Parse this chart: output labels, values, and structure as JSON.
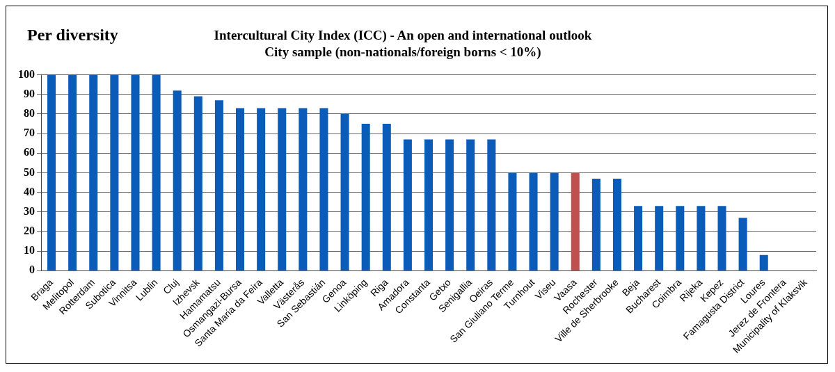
{
  "chart_data": {
    "type": "bar",
    "title": "Per diversity",
    "subtitle": "Intercultural City Index (ICC) - An open and international outlook\nCity sample (non-nationals/foreign borns < 10%)",
    "categories": [
      "Braga",
      "Melitopol",
      "Rotterdam",
      "Subotica",
      "Vinnitsa",
      "Lublin",
      "Cluj",
      "Izhevsk",
      "Hamamatsu",
      "Osmangazi-Bursa",
      "Santa Maria da Feira",
      "Valletta",
      "Västerås",
      "San Sebastián",
      "Genoa",
      "Linköping",
      "Riga",
      "Amadora",
      "Constanta",
      "Getxo",
      "Senigallia",
      "Oeiras",
      "San Giuliano Terme",
      "Turnhout",
      "Viseu",
      "Vaasa",
      "Rochester",
      "Ville de Sherbrooke",
      "Beja",
      "Bucharest",
      "Coimbra",
      "Rijeka",
      "Kepez",
      "Famagusta District",
      "Loures",
      "Jerez de Frontera",
      "Municipality of Klaksvik"
    ],
    "values": [
      100,
      100,
      100,
      100,
      100,
      100,
      92,
      89,
      87,
      83,
      83,
      83,
      83,
      83,
      80,
      75,
      75,
      67,
      67,
      67,
      67,
      67,
      50,
      50,
      50,
      50,
      47,
      47,
      33,
      33,
      33,
      33,
      33,
      27,
      8,
      0,
      0
    ],
    "colors": [
      "#0a5cb8",
      "#0a5cb8",
      "#0a5cb8",
      "#0a5cb8",
      "#0a5cb8",
      "#0a5cb8",
      "#0a5cb8",
      "#0a5cb8",
      "#0a5cb8",
      "#0a5cb8",
      "#0a5cb8",
      "#0a5cb8",
      "#0a5cb8",
      "#0a5cb8",
      "#0a5cb8",
      "#0a5cb8",
      "#0a5cb8",
      "#0a5cb8",
      "#0a5cb8",
      "#0a5cb8",
      "#0a5cb8",
      "#0a5cb8",
      "#0a5cb8",
      "#0a5cb8",
      "#0a5cb8",
      "#c0504d",
      "#0a5cb8",
      "#0a5cb8",
      "#0a5cb8",
      "#0a5cb8",
      "#0a5cb8",
      "#0a5cb8",
      "#0a5cb8",
      "#0a5cb8",
      "#0a5cb8",
      "#0a5cb8",
      "#0a5cb8"
    ],
    "ylim": [
      0,
      100
    ],
    "yticks": [
      0,
      10,
      20,
      30,
      40,
      50,
      60,
      70,
      80,
      90,
      100
    ],
    "grid": "y",
    "legend": false
  }
}
